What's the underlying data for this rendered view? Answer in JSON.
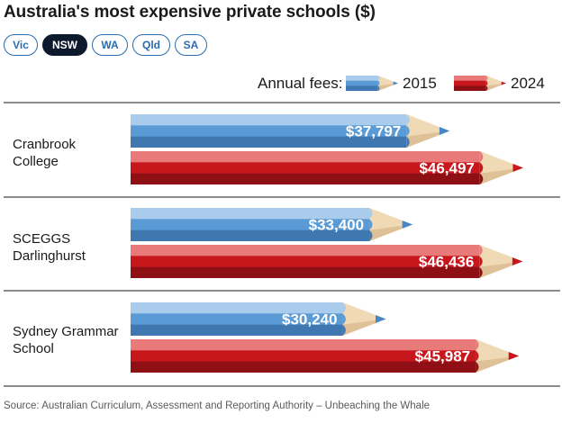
{
  "title": "Australia's most expensive private schools ($)",
  "tabs": [
    {
      "label": "Vic",
      "active": false
    },
    {
      "label": "NSW",
      "active": true
    },
    {
      "label": "WA",
      "active": false
    },
    {
      "label": "Qld",
      "active": false
    },
    {
      "label": "SA",
      "active": false
    }
  ],
  "legend": {
    "prefix": "Annual fees:",
    "items": [
      {
        "label": "2015",
        "color": "#5b9bd5"
      },
      {
        "label": "2024",
        "color": "#c8161d"
      }
    ]
  },
  "source": "Source: Australian Curriculum, Assessment and Reporting Authority – Unbeaching the Whale",
  "colors": {
    "series_2015": "#5b9bd5",
    "series_2024": "#c8161d",
    "wood": "#f0d9b5",
    "tab_active": "#0d1a2e",
    "tab_accent": "#2b6cb0"
  },
  "chart_data": {
    "type": "bar",
    "orientation": "horizontal",
    "title": "Australia's most expensive private schools ($)",
    "categories": [
      [
        "Cranbrook",
        "College"
      ],
      [
        "SCEGGS",
        "Darlinghurst"
      ],
      [
        "Sydney Grammar",
        "School"
      ]
    ],
    "series": [
      {
        "name": "2015",
        "values": [
          37797,
          33400,
          30240
        ],
        "labels": [
          "$37,797",
          "$33,400",
          "$30,240"
        ]
      },
      {
        "name": "2024",
        "values": [
          46497,
          46436,
          45987
        ],
        "labels": [
          "$46,497",
          "$46,436",
          "$45,987"
        ]
      }
    ],
    "xlim": [
      0,
      46497
    ],
    "grid": false,
    "legend_position": "top-right"
  }
}
